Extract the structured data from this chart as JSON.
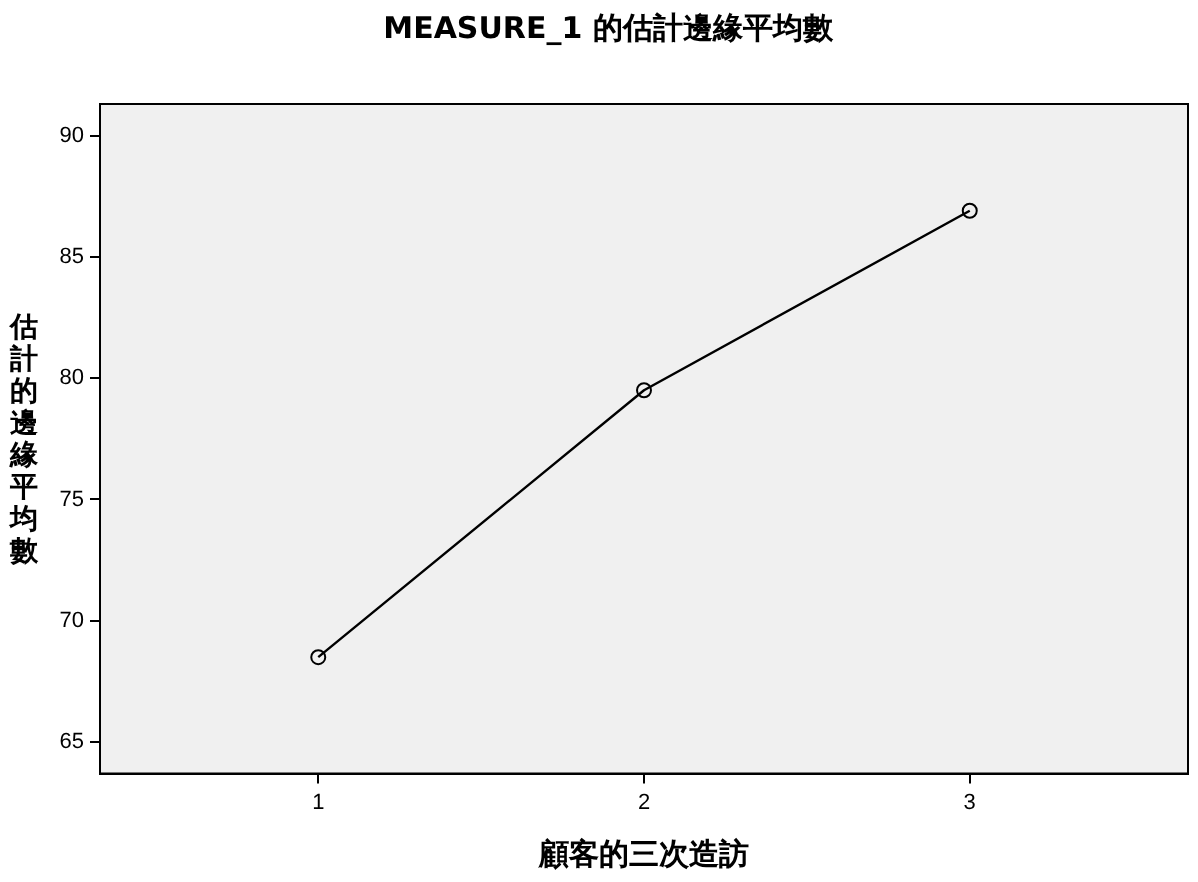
{
  "chart_data": {
    "type": "line",
    "title": "MEASURE_1 的估計邊緣平均數",
    "xlabel": "顧客的三次造訪",
    "ylabel": "估計的邊緣平均數",
    "x": [
      1,
      2,
      3
    ],
    "xlim": [
      0.33,
      3.67
    ],
    "xticks": [
      1,
      2,
      3
    ],
    "ylim": [
      63.7,
      91.3
    ],
    "yticks": [
      65,
      70,
      75,
      80,
      85,
      90
    ],
    "series": [
      {
        "color": "#000000",
        "values": [
          68.5,
          79.5,
          86.9
        ]
      }
    ],
    "grid": false,
    "legend": false,
    "marker": "circle",
    "line_style": "solid"
  }
}
